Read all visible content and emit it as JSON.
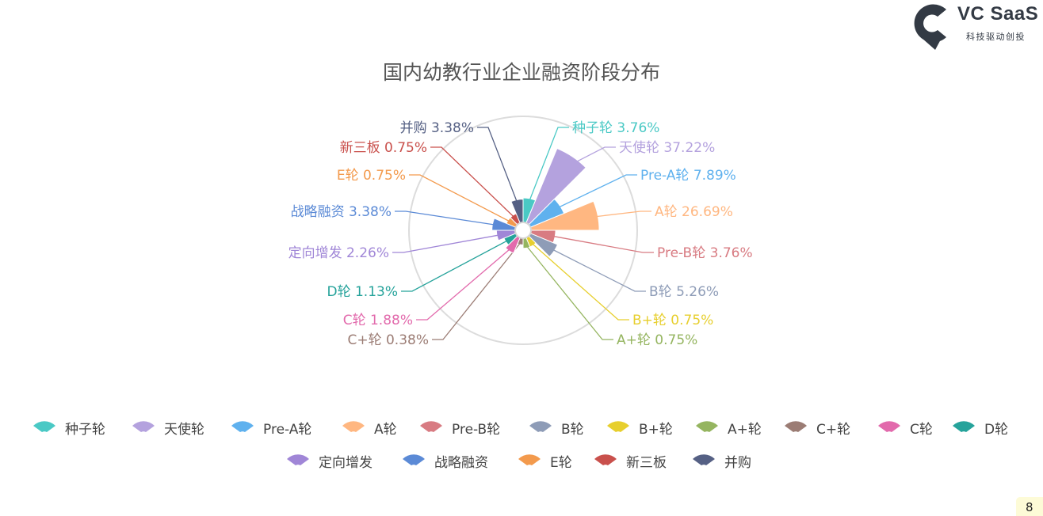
{
  "brand": {
    "name": "VC SaaS",
    "tagline": "科技驱动创投",
    "logo_icon": "location-pin-c-icon",
    "logo_color": "#333a44"
  },
  "chart_data": {
    "type": "pie",
    "subtype": "nightingale-rose",
    "title": "国内幼教行业企业融资阶段分布",
    "value_unit": "%",
    "center_ring": true,
    "outer_guide_circle": true,
    "legend_position": "bottom",
    "slices": [
      {
        "name": "种子轮",
        "value": 3.76,
        "label": "种子轮 3.76%",
        "color": "#4ac9c5"
      },
      {
        "name": "天使轮",
        "value": 37.22,
        "label": "天使轮 37.22%",
        "color": "#b4a2de"
      },
      {
        "name": "Pre-A轮",
        "value": 7.89,
        "label": "Pre-A轮 7.89%",
        "color": "#5fb1ee"
      },
      {
        "name": "A轮",
        "value": 26.69,
        "label": "A轮 26.69%",
        "color": "#ffb781"
      },
      {
        "name": "Pre-B轮",
        "value": 3.76,
        "label": "Pre-B轮 3.76%",
        "color": "#d87b82"
      },
      {
        "name": "B轮",
        "value": 5.26,
        "label": "B轮 5.26%",
        "color": "#8e9cb7"
      },
      {
        "name": "B+轮",
        "value": 0.75,
        "label": "B+轮 0.75%",
        "color": "#e7cf2e"
      },
      {
        "name": "A+轮",
        "value": 0.75,
        "label": "A+轮 0.75%",
        "color": "#95b560"
      },
      {
        "name": "C+轮",
        "value": 0.38,
        "label": "C+轮 0.38%",
        "color": "#9b7c74"
      },
      {
        "name": "C轮",
        "value": 1.88,
        "label": "C轮 1.88%",
        "color": "#e26aac"
      },
      {
        "name": "D轮",
        "value": 1.13,
        "label": "D轮 1.13%",
        "color": "#26a39b"
      },
      {
        "name": "定向增发",
        "value": 2.26,
        "label": "定向增发 2.26%",
        "color": "#a086d7"
      },
      {
        "name": "战略融资",
        "value": 3.38,
        "label": "战略融资 3.38%",
        "color": "#5b8ad6"
      },
      {
        "name": "E轮",
        "value": 0.75,
        "label": "E轮 0.75%",
        "color": "#f39a4d"
      },
      {
        "name": "新三板",
        "value": 0.75,
        "label": "新三板 0.75%",
        "color": "#c9504c"
      },
      {
        "name": "并购",
        "value": 3.38,
        "label": "并购 3.38%",
        "color": "#556084"
      }
    ]
  },
  "corner": {
    "text": "8"
  }
}
